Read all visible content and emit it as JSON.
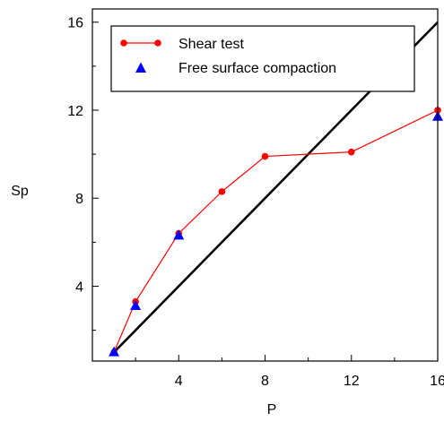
{
  "chart_data": {
    "type": "line",
    "title": "",
    "xlabel": "P",
    "ylabel": "Sp",
    "xlim": [
      0,
      16
    ],
    "ylim": [
      0.6,
      16.6
    ],
    "xticks": [
      4,
      8,
      12,
      16
    ],
    "yticks": [
      4,
      8,
      12,
      16
    ],
    "xtick_labels": [
      "4",
      "8",
      "12",
      "16"
    ],
    "ytick_labels": [
      "4",
      "8",
      "12",
      "16"
    ],
    "grid": false,
    "legend_position": "top-left",
    "series": [
      {
        "name": "Shear test",
        "kind": "line-marker",
        "marker": "circle",
        "color": "#ff0000",
        "x": [
          1,
          2,
          4,
          6,
          8,
          12,
          16
        ],
        "y": [
          1.0,
          3.3,
          6.4,
          8.3,
          9.9,
          10.1,
          12.0
        ]
      },
      {
        "name": "Free surface compaction",
        "kind": "marker",
        "marker": "triangle",
        "color": "#0000ff",
        "x": [
          1,
          2,
          4,
          16
        ],
        "y": [
          1.0,
          3.1,
          6.3,
          11.7
        ]
      },
      {
        "name": "",
        "kind": "line",
        "color": "#000000",
        "x": [
          1,
          16
        ],
        "y": [
          1,
          16
        ]
      }
    ]
  }
}
